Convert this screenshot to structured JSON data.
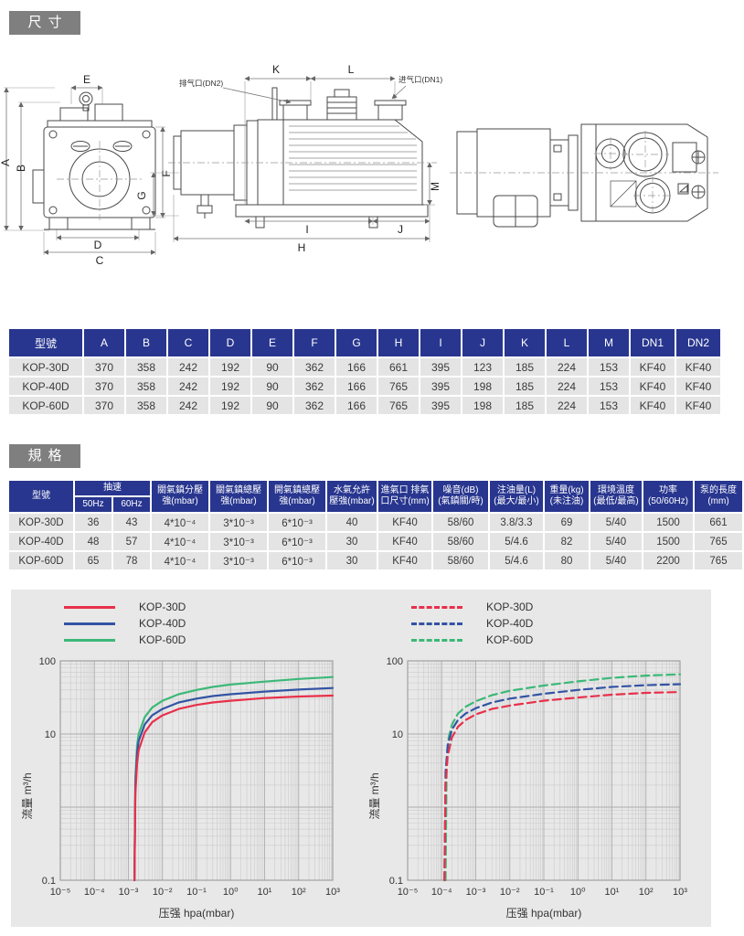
{
  "sections": {
    "dimensions_title": "尺寸",
    "specs_title": "規格"
  },
  "colors": {
    "table_header": "#28368f",
    "row_bg": "#e4e4e4",
    "panel_bg": "#e8e8e8",
    "label_bg": "#7f7f7f",
    "series_red": "#e8304a",
    "series_blue": "#3353a4",
    "series_green": "#3cb878"
  },
  "drawings": {
    "labels": {
      "a": "A",
      "b": "B",
      "c": "C",
      "d": "D",
      "e": "E",
      "f": "F",
      "g": "G",
      "h": "H",
      "i": "I",
      "j": "J",
      "k": "K",
      "l": "L",
      "m": "M",
      "exhaust_callout": "排气口(DN2)",
      "inlet_callout": "进气口(DN1)"
    }
  },
  "dim_table": {
    "columns": [
      "型號",
      "A",
      "B",
      "C",
      "D",
      "E",
      "F",
      "G",
      "H",
      "I",
      "J",
      "K",
      "L",
      "M",
      "DN1",
      "DN2"
    ],
    "rows": [
      [
        "KOP-30D",
        "370",
        "358",
        "242",
        "192",
        "90",
        "362",
        "166",
        "661",
        "395",
        "123",
        "185",
        "224",
        "153",
        "KF40",
        "KF40"
      ],
      [
        "KOP-40D",
        "370",
        "358",
        "242",
        "192",
        "90",
        "362",
        "166",
        "765",
        "395",
        "198",
        "185",
        "224",
        "153",
        "KF40",
        "KF40"
      ],
      [
        "KOP-60D",
        "370",
        "358",
        "242",
        "192",
        "90",
        "362",
        "166",
        "765",
        "395",
        "198",
        "185",
        "224",
        "153",
        "KF40",
        "KF40"
      ]
    ]
  },
  "spec_table": {
    "header": {
      "model": "型號",
      "speed": "抽速",
      "speed_sub": [
        "50Hz",
        "60Hz"
      ],
      "cols": [
        "關氣鎮分壓\n強(mbar)",
        "關氣鎮總壓\n強(mbar)",
        "開氣鎮總壓\n強(mbar)",
        "水氣允許\n壓強(mbar)",
        "進氣口 排氣\n口尺寸(mm)",
        "噪音(dB)\n(氣鎮關/時)",
        "注油量(L)\n(最大/最小)",
        "重量(kg)\n(未注油)",
        "環境溫度\n(最低/最高)",
        "功率\n(50/60Hz)",
        "泵的長度\n(mm)"
      ]
    },
    "rows": [
      [
        "KOP-30D",
        "36",
        "43",
        "4*10⁻⁴",
        "3*10⁻³",
        "6*10⁻³",
        "40",
        "KF40",
        "58/60",
        "3.8/3.3",
        "69",
        "5/40",
        "1500",
        "661"
      ],
      [
        "KOP-40D",
        "48",
        "57",
        "4*10⁻⁴",
        "3*10⁻³",
        "6*10⁻³",
        "30",
        "KF40",
        "58/60",
        "5/4.6",
        "82",
        "5/40",
        "1500",
        "765"
      ],
      [
        "KOP-60D",
        "65",
        "78",
        "4*10⁻⁴",
        "3*10⁻³",
        "6*10⁻³",
        "30",
        "KF40",
        "58/60",
        "5/4.6",
        "80",
        "5/40",
        "2200",
        "765"
      ]
    ]
  },
  "chart_data": [
    {
      "type": "line",
      "x_scale": "log",
      "y_scale": "log",
      "xlim": [
        1e-05,
        1000
      ],
      "ylim": [
        0.1,
        100
      ],
      "grid": true,
      "xlabel": "压强 hpa(mbar)",
      "ylabel": "流量 m³/h",
      "x_ticks": [
        "10⁻⁵",
        "10⁻⁴",
        "10⁻³",
        "10⁻²",
        "10⁻¹",
        "10⁰",
        "10¹",
        "10²",
        "10³"
      ],
      "y_ticks": [
        {
          "v": 100,
          "label": "100"
        },
        {
          "v": 10,
          "label": "10"
        },
        {
          "v": 0.1,
          "label": "0.1"
        }
      ],
      "line_style": "solid",
      "legend_position": "top-left",
      "series": [
        {
          "name": "KOP-30D",
          "color": "#e8304a",
          "points": [
            [
              0.0015,
              0.1
            ],
            [
              0.0016,
              1.5
            ],
            [
              0.0018,
              4
            ],
            [
              0.002,
              6
            ],
            [
              0.003,
              10.5
            ],
            [
              0.005,
              14.5
            ],
            [
              0.01,
              18
            ],
            [
              0.03,
              22
            ],
            [
              0.1,
              25
            ],
            [
              0.3,
              27
            ],
            [
              1,
              28.5
            ],
            [
              10,
              31
            ],
            [
              100,
              32.5
            ],
            [
              1000,
              33.5
            ]
          ]
        },
        {
          "name": "KOP-40D",
          "color": "#3353a4",
          "points": [
            [
              0.0015,
              0.1
            ],
            [
              0.0016,
              2
            ],
            [
              0.0018,
              5.5
            ],
            [
              0.002,
              8
            ],
            [
              0.003,
              13.5
            ],
            [
              0.005,
              18
            ],
            [
              0.01,
              22
            ],
            [
              0.03,
              27
            ],
            [
              0.1,
              30.5
            ],
            [
              0.3,
              33
            ],
            [
              1,
              35
            ],
            [
              10,
              38
            ],
            [
              100,
              40.5
            ],
            [
              1000,
              42.5
            ]
          ]
        },
        {
          "name": "KOP-60D",
          "color": "#3cb878",
          "points": [
            [
              0.0015,
              0.1
            ],
            [
              0.0016,
              2.5
            ],
            [
              0.0018,
              7
            ],
            [
              0.002,
              10
            ],
            [
              0.003,
              17
            ],
            [
              0.005,
              23
            ],
            [
              0.01,
              28.5
            ],
            [
              0.03,
              35
            ],
            [
              0.1,
              40
            ],
            [
              0.3,
              44
            ],
            [
              1,
              47.5
            ],
            [
              10,
              52
            ],
            [
              100,
              56.5
            ],
            [
              1000,
              60
            ]
          ]
        }
      ]
    },
    {
      "type": "line",
      "x_scale": "log",
      "y_scale": "log",
      "xlim": [
        1e-05,
        1000
      ],
      "ylim": [
        0.1,
        100
      ],
      "grid": true,
      "xlabel": "压强 hpa(mbar)",
      "ylabel": "流量 m³/h",
      "x_ticks": [
        "10⁻⁵",
        "10⁻⁴",
        "10⁻³",
        "10⁻²",
        "10⁻¹",
        "10⁰",
        "10¹",
        "10²",
        "10³"
      ],
      "y_ticks": [
        {
          "v": 100,
          "label": "100"
        },
        {
          "v": 10,
          "label": "10"
        },
        {
          "v": 0.1,
          "label": "0.1"
        }
      ],
      "line_style": "dashed",
      "legend_position": "top-left",
      "series": [
        {
          "name": "KOP-30D",
          "color": "#e8304a",
          "points": [
            [
              0.00012,
              0.1
            ],
            [
              0.00013,
              2
            ],
            [
              0.00015,
              5
            ],
            [
              0.0002,
              9
            ],
            [
              0.0003,
              12.5
            ],
            [
              0.0005,
              15.5
            ],
            [
              0.001,
              18.5
            ],
            [
              0.003,
              22
            ],
            [
              0.01,
              24.5
            ],
            [
              0.1,
              28.5
            ],
            [
              1,
              31.5
            ],
            [
              10,
              34.5
            ],
            [
              100,
              36.5
            ],
            [
              1000,
              37.5
            ]
          ]
        },
        {
          "name": "KOP-40D",
          "color": "#3353a4",
          "points": [
            [
              0.00012,
              0.1
            ],
            [
              0.00013,
              3
            ],
            [
              0.00015,
              7
            ],
            [
              0.0002,
              11.5
            ],
            [
              0.0003,
              15.5
            ],
            [
              0.0005,
              19
            ],
            [
              0.001,
              22.5
            ],
            [
              0.003,
              27
            ],
            [
              0.01,
              30.5
            ],
            [
              0.1,
              35.5
            ],
            [
              1,
              40
            ],
            [
              10,
              44
            ],
            [
              100,
              46.5
            ],
            [
              1000,
              48
            ]
          ]
        },
        {
          "name": "KOP-60D",
          "color": "#3cb878",
          "points": [
            [
              0.00013,
              0.1
            ],
            [
              0.00014,
              4
            ],
            [
              0.00016,
              9
            ],
            [
              0.0002,
              13.5
            ],
            [
              0.0003,
              19
            ],
            [
              0.0005,
              23.5
            ],
            [
              0.001,
              28
            ],
            [
              0.003,
              34
            ],
            [
              0.01,
              39
            ],
            [
              0.1,
              46
            ],
            [
              1,
              52.5
            ],
            [
              10,
              58.5
            ],
            [
              100,
              63
            ],
            [
              1000,
              65.5
            ]
          ]
        }
      ]
    }
  ]
}
